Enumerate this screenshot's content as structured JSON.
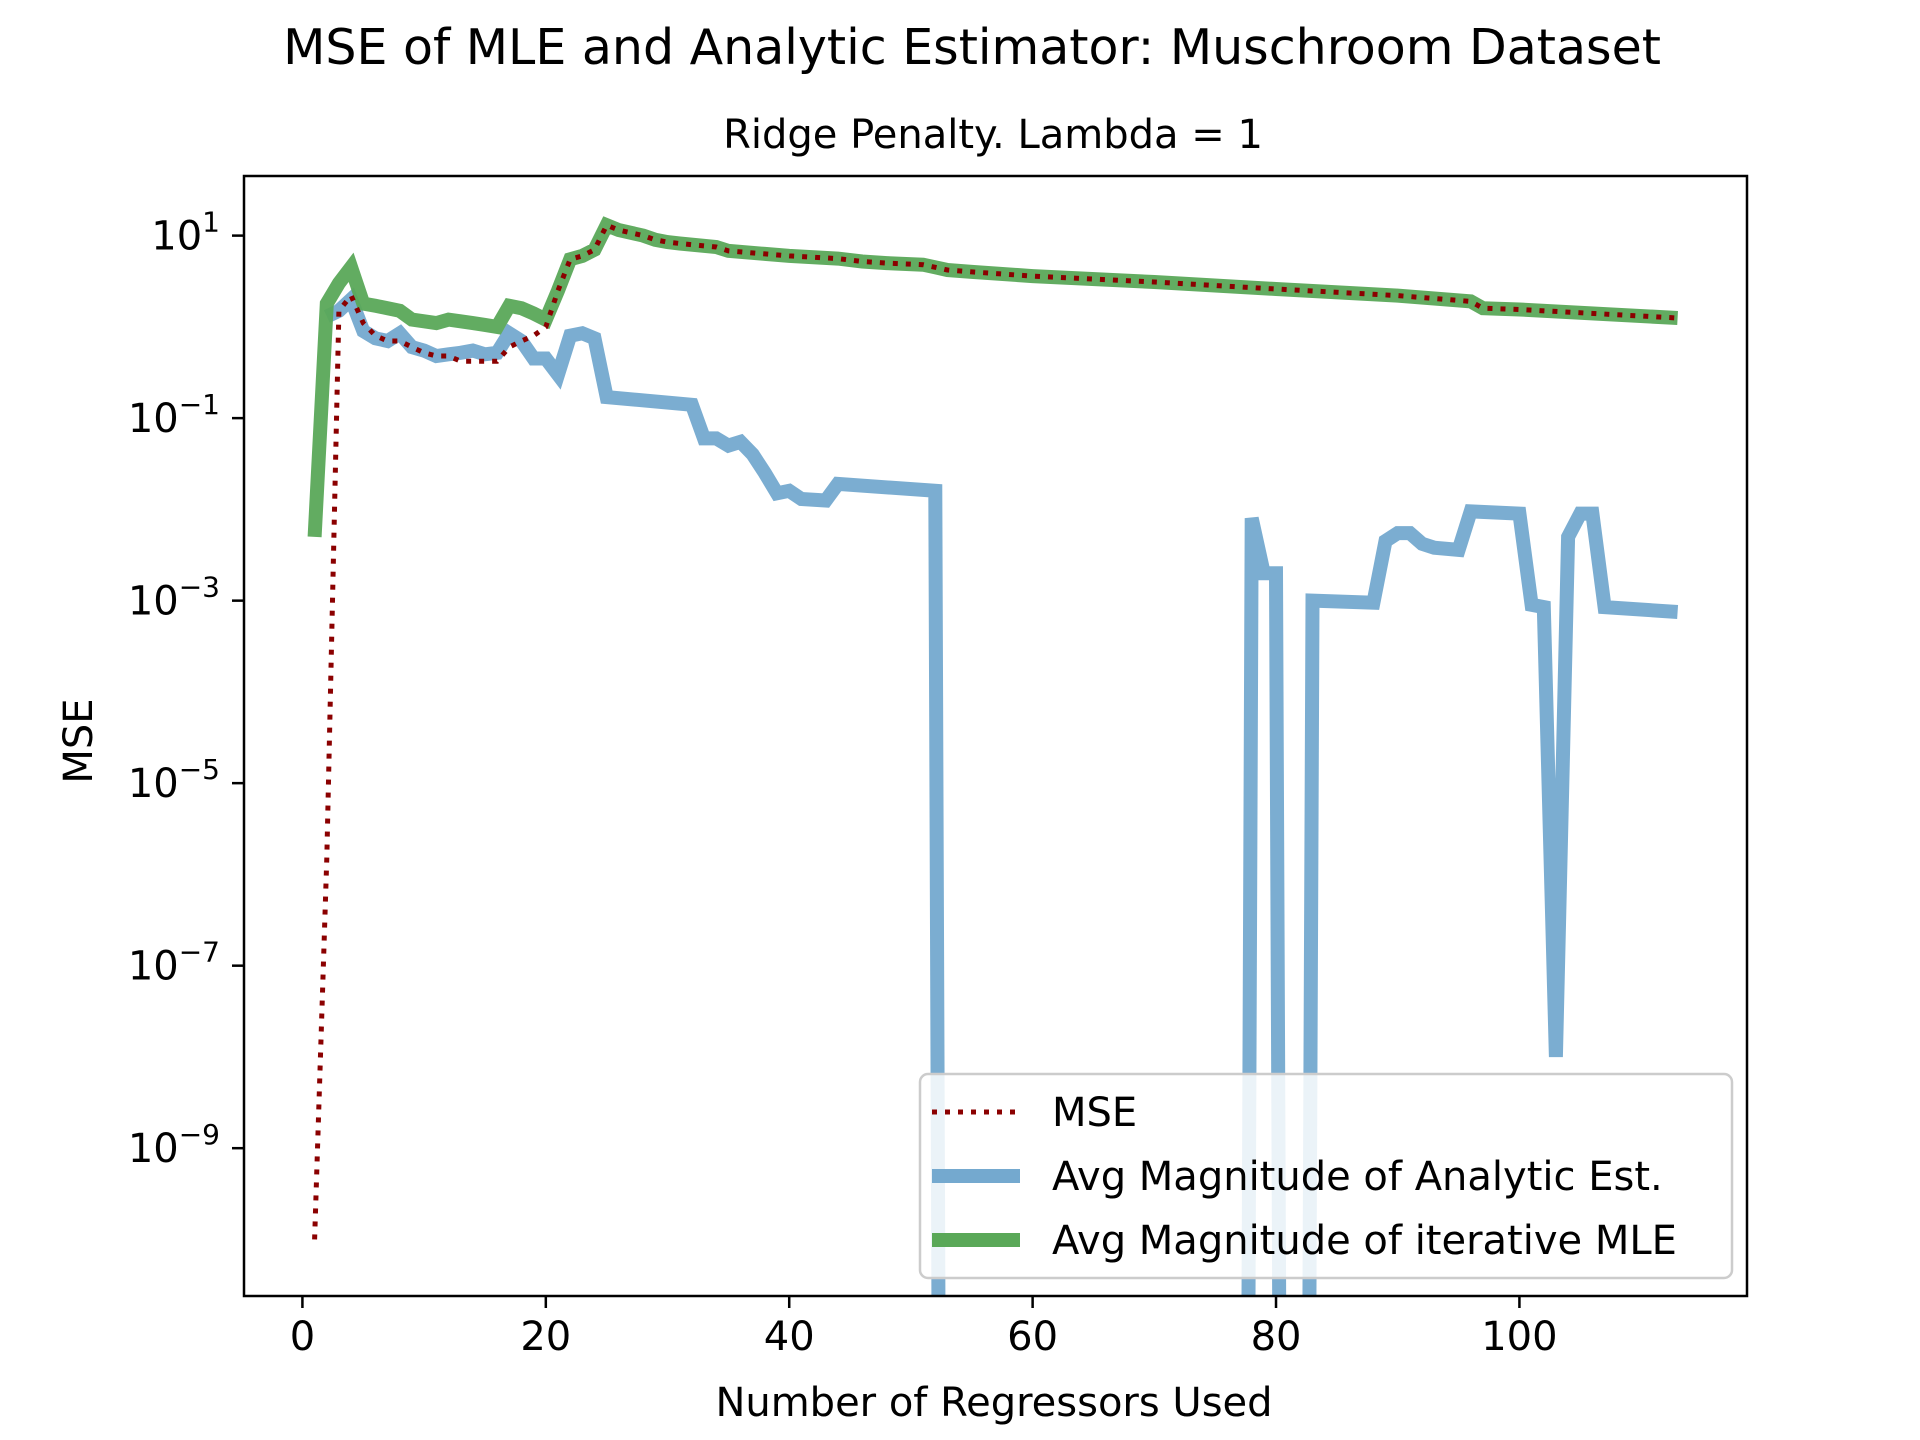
{
  "chart_data": {
    "type": "line",
    "title": "MSE of MLE and Analytic Estimator: Muschroom Dataset",
    "subtitle": "Ridge Penalty. Lambda = 1",
    "xlabel": "Number of Regressors Used",
    "ylabel": "MSE",
    "y_scale": "log",
    "xlim": [
      -4.8,
      118.7
    ],
    "ylim": [
      2.4e-11,
      45
    ],
    "x_ticks": [
      0,
      20,
      40,
      60,
      80,
      100
    ],
    "y_ticks": [
      {
        "value": 10,
        "base": "10",
        "exp": "1"
      },
      {
        "value": 0.1,
        "base": "10",
        "exp": "−1"
      },
      {
        "value": 0.001,
        "base": "10",
        "exp": "−3"
      },
      {
        "value": 1e-05,
        "base": "10",
        "exp": "−5"
      },
      {
        "value": 1e-07,
        "base": "10",
        "exp": "−7"
      },
      {
        "value": 1e-09,
        "base": "10",
        "exp": "−9"
      }
    ],
    "grid": false,
    "legend_position": "lower-right",
    "series": [
      {
        "name": "Avg Magnitude of Analytic Est.",
        "color": "#74a9cf",
        "style": "solid",
        "points": [
          [
            2,
            1.3
          ],
          [
            3,
            1.5
          ],
          [
            4,
            2.0
          ],
          [
            5,
            0.9
          ],
          [
            6,
            0.75
          ],
          [
            7,
            0.7
          ],
          [
            8,
            0.85
          ],
          [
            9,
            0.6
          ],
          [
            10,
            0.55
          ],
          [
            11,
            0.48
          ],
          [
            12,
            0.5
          ],
          [
            13,
            0.52
          ],
          [
            14,
            0.55
          ],
          [
            15,
            0.5
          ],
          [
            16,
            0.52
          ],
          [
            17,
            0.85
          ],
          [
            18,
            0.7
          ],
          [
            19,
            0.45
          ],
          [
            20,
            0.45
          ],
          [
            21,
            0.3
          ],
          [
            22,
            0.8
          ],
          [
            23,
            0.85
          ],
          [
            24,
            0.75
          ],
          [
            25,
            0.17
          ],
          [
            32,
            0.14
          ],
          [
            33,
            0.06
          ],
          [
            34,
            0.06
          ],
          [
            35,
            0.05
          ],
          [
            36,
            0.055
          ],
          [
            37,
            0.04
          ],
          [
            38,
            0.025
          ],
          [
            39,
            0.015
          ],
          [
            40,
            0.016
          ],
          [
            41,
            0.013
          ],
          [
            43,
            0.0125
          ],
          [
            44,
            0.019
          ],
          [
            52,
            0.016
          ],
          [
            52.3,
            1e-12
          ],
          [
            77.7,
            1e-12
          ],
          [
            78,
            0.008
          ],
          [
            79,
            0.002
          ],
          [
            80,
            0.002
          ],
          [
            80.3,
            1e-12
          ],
          [
            82.7,
            1e-12
          ],
          [
            83,
            0.001
          ],
          [
            88,
            0.00095
          ],
          [
            89,
            0.0045
          ],
          [
            90,
            0.0055
          ],
          [
            91,
            0.0055
          ],
          [
            92,
            0.0042
          ],
          [
            93,
            0.0038
          ],
          [
            95,
            0.0036
          ],
          [
            96,
            0.0095
          ],
          [
            100,
            0.009
          ],
          [
            101,
            0.0009
          ],
          [
            102,
            0.00085
          ],
          [
            103,
            1e-08
          ],
          [
            104,
            0.005
          ],
          [
            105,
            0.009
          ],
          [
            106,
            0.009
          ],
          [
            107,
            0.00085
          ],
          [
            113,
            0.00075
          ]
        ]
      },
      {
        "name": "Avg Magnitude of iterative MLE",
        "color": "#5aa858",
        "style": "solid",
        "points": [
          [
            1,
            0.005
          ],
          [
            2,
            1.8
          ],
          [
            3,
            3.0
          ],
          [
            4,
            4.5
          ],
          [
            5,
            1.8
          ],
          [
            6,
            1.7
          ],
          [
            7,
            1.6
          ],
          [
            8,
            1.5
          ],
          [
            9,
            1.2
          ],
          [
            10,
            1.15
          ],
          [
            11,
            1.1
          ],
          [
            12,
            1.2
          ],
          [
            13,
            1.15
          ],
          [
            14,
            1.1
          ],
          [
            15,
            1.05
          ],
          [
            16,
            1.0
          ],
          [
            17,
            1.7
          ],
          [
            18,
            1.6
          ],
          [
            19,
            1.4
          ],
          [
            20,
            1.2
          ],
          [
            21,
            2.5
          ],
          [
            22,
            5.5
          ],
          [
            23,
            6.0
          ],
          [
            24,
            7.0
          ],
          [
            25,
            13.0
          ],
          [
            26,
            11.5
          ],
          [
            28,
            10.0
          ],
          [
            29,
            9.0
          ],
          [
            30,
            8.5
          ],
          [
            31,
            8.2
          ],
          [
            34,
            7.5
          ],
          [
            35,
            6.8
          ],
          [
            38,
            6.3
          ],
          [
            40,
            6.0
          ],
          [
            44,
            5.6
          ],
          [
            46,
            5.2
          ],
          [
            48,
            5.0
          ],
          [
            51,
            4.8
          ],
          [
            52,
            4.5
          ],
          [
            53,
            4.2
          ],
          [
            55,
            4.0
          ],
          [
            60,
            3.6
          ],
          [
            70,
            3.1
          ],
          [
            80,
            2.6
          ],
          [
            90,
            2.2
          ],
          [
            96,
            1.9
          ],
          [
            97,
            1.6
          ],
          [
            100,
            1.55
          ],
          [
            113,
            1.25
          ]
        ]
      },
      {
        "name": "MSE",
        "color": "#8b0000",
        "style": "dotted",
        "points": [
          [
            1,
            1e-10
          ],
          [
            2,
            1.5e-06
          ],
          [
            3,
            1.5
          ],
          [
            4,
            2.2
          ],
          [
            5,
            1.1
          ],
          [
            6,
            0.8
          ],
          [
            7,
            0.7
          ],
          [
            8,
            0.7
          ],
          [
            9,
            0.6
          ],
          [
            10,
            0.52
          ],
          [
            11,
            0.48
          ],
          [
            12,
            0.48
          ],
          [
            13,
            0.42
          ],
          [
            14,
            0.42
          ],
          [
            15,
            0.42
          ],
          [
            16,
            0.42
          ],
          [
            17,
            0.6
          ],
          [
            18,
            0.7
          ],
          [
            19,
            0.8
          ],
          [
            20,
            1.0
          ],
          [
            21,
            2.5
          ],
          [
            22,
            5.5
          ],
          [
            23,
            6.0
          ],
          [
            24,
            7.0
          ],
          [
            25,
            13.0
          ],
          [
            26,
            11.5
          ],
          [
            28,
            10.0
          ],
          [
            29,
            9.0
          ],
          [
            30,
            8.5
          ],
          [
            31,
            8.2
          ],
          [
            34,
            7.5
          ],
          [
            35,
            6.8
          ],
          [
            38,
            6.3
          ],
          [
            40,
            6.0
          ],
          [
            44,
            5.6
          ],
          [
            46,
            5.2
          ],
          [
            48,
            5.0
          ],
          [
            51,
            4.8
          ],
          [
            52,
            4.5
          ],
          [
            53,
            4.2
          ],
          [
            55,
            4.0
          ],
          [
            60,
            3.6
          ],
          [
            70,
            3.1
          ],
          [
            80,
            2.6
          ],
          [
            90,
            2.2
          ],
          [
            96,
            1.9
          ],
          [
            97,
            1.6
          ],
          [
            100,
            1.55
          ],
          [
            113,
            1.25
          ]
        ]
      }
    ],
    "legend_order": [
      "MSE",
      "Avg Magnitude of Analytic Est.",
      "Avg Magnitude of iterative MLE"
    ]
  }
}
